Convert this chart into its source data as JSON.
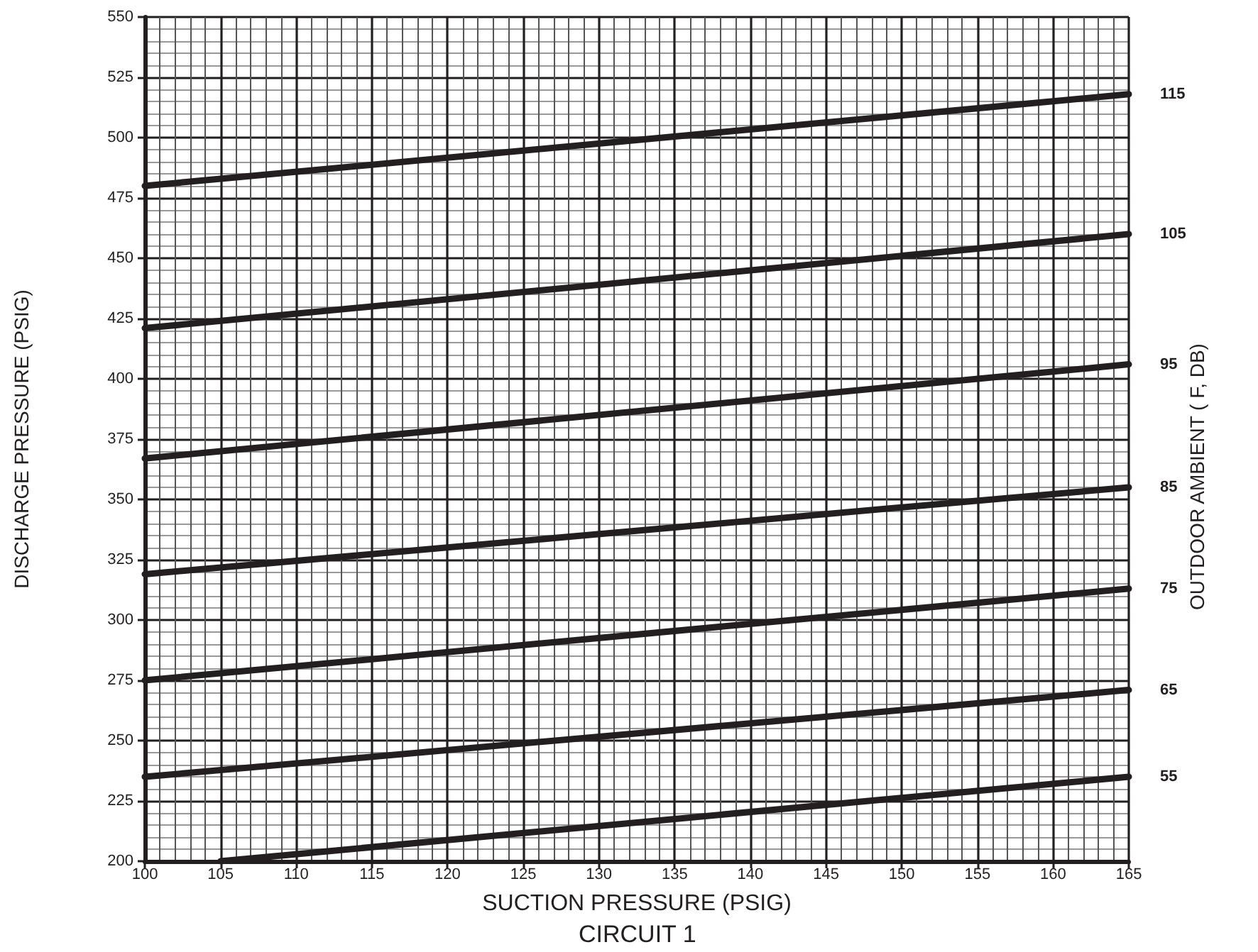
{
  "chart_data": {
    "type": "line",
    "xlabel": "SUCTION PRESSURE (PSIG)",
    "ylabel": "DISCHARGE PRESSURE (PSIG)",
    "y2label": "OUTDOOR AMBIENT ( F, DB)",
    "annotations": [
      "CIRCUIT 1"
    ],
    "x": [
      100,
      165
    ],
    "series": [
      {
        "name": "55",
        "color": "#231f20",
        "x": [
          105,
          165
        ],
        "values": [
          200,
          235
        ]
      },
      {
        "name": "65",
        "color": "#231f20",
        "values": [
          235,
          271
        ]
      },
      {
        "name": "75",
        "color": "#231f20",
        "values": [
          275,
          313
        ]
      },
      {
        "name": "85",
        "color": "#231f20",
        "values": [
          319,
          355
        ]
      },
      {
        "name": "95",
        "color": "#231f20",
        "values": [
          367,
          406
        ]
      },
      {
        "name": "105",
        "color": "#231f20",
        "values": [
          421,
          460
        ]
      },
      {
        "name": "115",
        "color": "#231f20",
        "values": [
          480,
          518
        ]
      }
    ],
    "xlim": [
      100,
      165
    ],
    "xticks": [
      100,
      105,
      110,
      115,
      120,
      125,
      130,
      135,
      140,
      145,
      150,
      155,
      160,
      165
    ],
    "ylim": [
      200,
      550
    ],
    "yticks": [
      200,
      225,
      250,
      275,
      300,
      325,
      350,
      375,
      400,
      425,
      450,
      475,
      500,
      525,
      550
    ],
    "grid": true,
    "legend": false,
    "marker": "none",
    "line_style": "solid"
  }
}
